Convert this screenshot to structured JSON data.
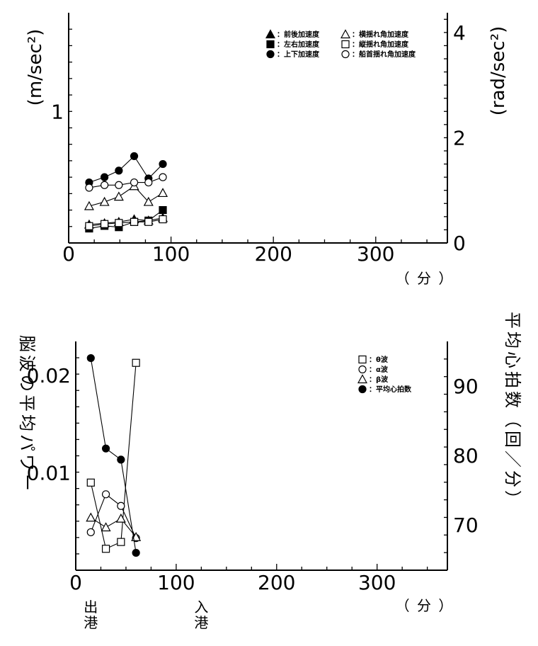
{
  "chart_data": [
    {
      "type": "line",
      "title": "",
      "xlabel": "（ 分 ）",
      "ylabel": "(m/sec²)",
      "y2label": "(rad/sec²)",
      "xlim": [
        0,
        370
      ],
      "ylim": [
        0,
        1.75
      ],
      "y2lim": [
        0,
        4.375
      ],
      "xticks": [
        0,
        100,
        200,
        300
      ],
      "xtick_labels": [
        "0",
        "100",
        "200",
        "300"
      ],
      "yticks": [
        1
      ],
      "ytick_labels": [
        "1"
      ],
      "y2ticks": [
        0,
        2,
        4
      ],
      "y2tick_labels": [
        "0",
        "2",
        "4"
      ],
      "grid": false,
      "legend_position": "top-right",
      "series": [
        {
          "name": "前後加速度",
          "marker": "filled-triangle",
          "axis": "left",
          "x": [
            20,
            35,
            49,
            64,
            78,
            92
          ],
          "y": [
            0.14,
            0.15,
            0.16,
            0.18,
            0.17,
            0.19
          ]
        },
        {
          "name": "左右加速度",
          "marker": "filled-square",
          "axis": "left",
          "x": [
            20,
            35,
            49,
            64,
            78,
            92
          ],
          "y": [
            0.11,
            0.13,
            0.12,
            0.16,
            0.17,
            0.25
          ]
        },
        {
          "name": "上下加速度",
          "marker": "filled-circle",
          "axis": "left",
          "x": [
            20,
            35,
            49,
            64,
            78,
            92
          ],
          "y": [
            0.46,
            0.5,
            0.55,
            0.66,
            0.49,
            0.6
          ]
        },
        {
          "name": "横揺れ角加速度",
          "marker": "open-triangle",
          "axis": "right",
          "x": [
            20,
            35,
            49,
            64,
            78,
            92
          ],
          "y": [
            0.7,
            0.78,
            0.88,
            1.08,
            0.78,
            0.95
          ]
        },
        {
          "name": "縦揺れ角加速度",
          "marker": "open-square",
          "axis": "right",
          "x": [
            20,
            35,
            49,
            64,
            78,
            92
          ],
          "y": [
            0.32,
            0.36,
            0.38,
            0.4,
            0.4,
            0.45
          ]
        },
        {
          "name": "船首揺れ角加速度",
          "marker": "open-circle",
          "axis": "right",
          "x": [
            20,
            35,
            49,
            64,
            78,
            92
          ],
          "y": [
            1.05,
            1.1,
            1.1,
            1.15,
            1.15,
            1.25
          ]
        }
      ]
    },
    {
      "type": "line",
      "title": "",
      "xlabel": "（ 分 ）",
      "ylabel": "脳波の平均パワー",
      "y2label": "平均心拍数（回／分）",
      "xlim": [
        0,
        370
      ],
      "ylim": [
        0,
        0.0235
      ],
      "y2lim": [
        63.5,
        96.4
      ],
      "xticks": [
        0,
        100,
        200,
        300
      ],
      "xtick_labels": [
        "0",
        "100",
        "200",
        "300"
      ],
      "yticks": [
        0.01,
        0.02
      ],
      "ytick_labels": [
        "0.01",
        "0.02"
      ],
      "y2ticks": [
        70,
        80,
        90
      ],
      "y2tick_labels": [
        "70",
        "80",
        "90"
      ],
      "grid": false,
      "legend_position": "top-right",
      "x_annotations": [
        {
          "text": "出港",
          "x": 15
        },
        {
          "text": "入港",
          "x": 125
        }
      ],
      "series": [
        {
          "name": "θ波",
          "marker": "open-square",
          "axis": "left",
          "x": [
            15,
            30,
            45,
            60
          ],
          "y": [
            0.009,
            0.0022,
            0.0029,
            0.0213
          ]
        },
        {
          "name": "α波",
          "marker": "open-circle",
          "axis": "left",
          "x": [
            15,
            30,
            45,
            60
          ],
          "y": [
            0.0039,
            0.0078,
            0.0066,
            0.0033
          ]
        },
        {
          "name": "β波",
          "marker": "open-triangle",
          "axis": "left",
          "x": [
            15,
            30,
            45,
            60
          ],
          "y": [
            0.0054,
            0.0044,
            0.0053,
            0.0034
          ]
        },
        {
          "name": "平均心拍数",
          "marker": "filled-circle",
          "axis": "right",
          "x": [
            15,
            30,
            45,
            60
          ],
          "y": [
            94,
            81,
            79.4,
            66
          ]
        }
      ]
    }
  ]
}
